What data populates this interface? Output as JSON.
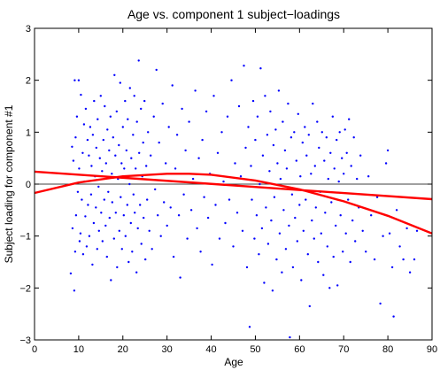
{
  "chart_data": {
    "type": "scatter",
    "title": "Age vs. component 1 subject−loadings",
    "xlabel": "Age",
    "ylabel": "Subject loading for component #1",
    "xlim": [
      0,
      90
    ],
    "ylim": [
      -3,
      3
    ],
    "xticks": [
      "0",
      "10",
      "20",
      "30",
      "40",
      "50",
      "60",
      "70",
      "80",
      "90"
    ],
    "yticks": [
      "3",
      "2",
      "1",
      "0",
      "−1",
      "−2",
      "−3"
    ],
    "xtick_values": [
      0,
      10,
      20,
      30,
      40,
      50,
      60,
      70,
      80,
      90
    ],
    "ytick_values": [
      3,
      2,
      1,
      0,
      -1,
      -2,
      -3
    ],
    "grid": false,
    "reference_line": {
      "y": 0,
      "color": "#000000"
    },
    "colors": {
      "points": "#0000ff",
      "fits": "#ff0000",
      "axes": "#000000",
      "background": "#ffffff"
    },
    "series": [
      {
        "kind": "points",
        "points": [
          [
            8.2,
            -1.72
          ],
          [
            8.5,
            0.72
          ],
          [
            8.6,
            -0.85
          ],
          [
            8.8,
            0.45
          ],
          [
            9.0,
            -2.05
          ],
          [
            9.1,
            2.0
          ],
          [
            9.2,
            -1.3
          ],
          [
            9.3,
            0.9
          ],
          [
            9.4,
            -0.6
          ],
          [
            9.6,
            1.3
          ],
          [
            9.8,
            -0.15
          ],
          [
            10.0,
            2.0
          ],
          [
            10.1,
            0.3
          ],
          [
            10.2,
            -1.1
          ],
          [
            10.4,
            -0.95
          ],
          [
            10.5,
            1.72
          ],
          [
            10.7,
            -0.3
          ],
          [
            10.9,
            0.6
          ],
          [
            11.0,
            -1.35
          ],
          [
            11.2,
            1.15
          ],
          [
            11.3,
            0.05
          ],
          [
            11.5,
            -0.62
          ],
          [
            11.6,
            1.45
          ],
          [
            11.8,
            -1.2
          ],
          [
            12.0,
            0.85
          ],
          [
            12.1,
            -0.4
          ],
          [
            12.3,
            0.55
          ],
          [
            12.4,
            -1.0
          ],
          [
            12.6,
            1.1
          ],
          [
            12.8,
            -0.2
          ],
          [
            12.9,
            0.35
          ],
          [
            13.1,
            -1.55
          ],
          [
            13.2,
            0.95
          ],
          [
            13.4,
            -0.75
          ],
          [
            13.5,
            1.6
          ],
          [
            13.7,
            0.15
          ],
          [
            13.9,
            -0.45
          ],
          [
            14.0,
            0.7
          ],
          [
            14.2,
            -1.25
          ],
          [
            14.3,
            1.25
          ],
          [
            14.5,
            -0.05
          ],
          [
            14.6,
            -0.9
          ],
          [
            14.8,
            0.5
          ],
          [
            15.0,
            1.7
          ],
          [
            15.1,
            -0.55
          ],
          [
            15.3,
            0.25
          ],
          [
            15.4,
            -1.1
          ],
          [
            15.6,
            0.85
          ],
          [
            15.8,
            -0.3
          ],
          [
            15.9,
            1.5
          ],
          [
            16.1,
            -0.8
          ],
          [
            16.2,
            0.4
          ],
          [
            16.4,
            -1.4
          ],
          [
            16.5,
            1.05
          ],
          [
            16.7,
            -0.15
          ],
          [
            16.9,
            0.65
          ],
          [
            17.0,
            -0.65
          ],
          [
            17.2,
            1.3
          ],
          [
            17.3,
            -1.85
          ],
          [
            17.5,
            0.2
          ],
          [
            17.6,
            -0.35
          ],
          [
            17.8,
            0.9
          ],
          [
            18.0,
            -1.05
          ],
          [
            18.1,
            2.1
          ],
          [
            18.3,
            0.55
          ],
          [
            18.4,
            -0.55
          ],
          [
            18.6,
            1.4
          ],
          [
            18.7,
            -1.6
          ],
          [
            18.9,
            0.1
          ],
          [
            19.1,
            0.75
          ],
          [
            19.2,
            -0.9
          ],
          [
            19.4,
            1.95
          ],
          [
            19.5,
            -0.25
          ],
          [
            19.7,
            0.4
          ],
          [
            19.8,
            -1.25
          ],
          [
            20.0,
            1.1
          ],
          [
            20.2,
            -0.6
          ],
          [
            20.3,
            0.3
          ],
          [
            20.5,
            1.6
          ],
          [
            20.6,
            -1.0
          ],
          [
            20.8,
            0.65
          ],
          [
            21.0,
            -0.4
          ],
          [
            21.1,
            1.25
          ],
          [
            21.3,
            -1.5
          ],
          [
            21.5,
            0.0
          ],
          [
            21.6,
            1.85
          ],
          [
            21.8,
            -0.75
          ],
          [
            21.9,
            0.5
          ],
          [
            22.1,
            -1.3
          ],
          [
            22.3,
            0.95
          ],
          [
            22.4,
            -0.2
          ],
          [
            22.6,
            1.7
          ],
          [
            22.7,
            -0.55
          ],
          [
            22.9,
            0.3
          ],
          [
            23.1,
            -1.7
          ],
          [
            23.2,
            1.2
          ],
          [
            23.4,
            -0.85
          ],
          [
            23.6,
            2.38
          ],
          [
            23.7,
            0.6
          ],
          [
            23.9,
            -0.4
          ],
          [
            24.1,
            1.45
          ],
          [
            24.2,
            -1.15
          ],
          [
            24.4,
            0.15
          ],
          [
            24.6,
            0.8
          ],
          [
            24.7,
            -0.65
          ],
          [
            24.9,
            1.6
          ],
          [
            25.1,
            -1.45
          ],
          [
            25.3,
            0.35
          ],
          [
            25.5,
            -0.3
          ],
          [
            25.7,
            1.0
          ],
          [
            26.0,
            -0.9
          ],
          [
            26.3,
            0.55
          ],
          [
            26.6,
            -1.25
          ],
          [
            27.0,
            1.3
          ],
          [
            27.3,
            -0.1
          ],
          [
            27.6,
            2.2
          ],
          [
            27.9,
            -0.6
          ],
          [
            28.2,
            0.8
          ],
          [
            28.6,
            -1.0
          ],
          [
            29.0,
            1.55
          ],
          [
            29.3,
            -0.35
          ],
          [
            29.7,
            0.4
          ],
          [
            30.0,
            -0.8
          ],
          [
            30.4,
            1.1
          ],
          [
            30.8,
            -0.45
          ],
          [
            31.2,
            1.9
          ],
          [
            31.5,
            -1.4
          ],
          [
            31.9,
            0.3
          ],
          [
            32.3,
            0.95
          ],
          [
            32.7,
            -0.6
          ],
          [
            33.0,
            -1.8
          ],
          [
            33.4,
            1.45
          ],
          [
            33.8,
            -0.2
          ],
          [
            34.2,
            0.65
          ],
          [
            34.6,
            -1.05
          ],
          [
            35.0,
            1.2
          ],
          [
            35.5,
            -0.5
          ],
          [
            35.9,
            0.1
          ],
          [
            36.4,
            1.8
          ],
          [
            36.8,
            -0.85
          ],
          [
            37.2,
            0.5
          ],
          [
            37.6,
            -1.3
          ],
          [
            38.0,
            0.85
          ],
          [
            38.4,
            -0.25
          ],
          [
            38.9,
            1.4
          ],
          [
            39.3,
            -0.65
          ],
          [
            39.7,
            0.2
          ],
          [
            40.2,
            -1.55
          ],
          [
            40.6,
            1.7
          ],
          [
            41.0,
            -0.4
          ],
          [
            41.5,
            0.6
          ],
          [
            41.9,
            -1.05
          ],
          [
            42.4,
            1.0
          ],
          [
            42.8,
            0.05
          ],
          [
            43.2,
            -0.75
          ],
          [
            43.7,
            1.3
          ],
          [
            44.1,
            -0.3
          ],
          [
            44.6,
            2.0
          ],
          [
            45.0,
            -1.2
          ],
          [
            45.4,
            0.4
          ],
          [
            45.9,
            -0.55
          ],
          [
            46.3,
            1.5
          ],
          [
            46.7,
            0.15
          ],
          [
            47.1,
            -0.9
          ],
          [
            47.4,
            2.28
          ],
          [
            47.8,
            0.7
          ],
          [
            48.1,
            -1.6
          ],
          [
            48.4,
            1.1
          ],
          [
            48.7,
            -2.75
          ],
          [
            49.0,
            0.35
          ],
          [
            49.2,
            -0.3
          ],
          [
            49.5,
            1.6
          ],
          [
            49.8,
            -1.05
          ],
          [
            50.0,
            0.85
          ],
          [
            50.3,
            -0.6
          ],
          [
            50.5,
            1.3
          ],
          [
            50.8,
            -1.35
          ],
          [
            51.0,
            0.0
          ],
          [
            51.2,
            2.23
          ],
          [
            51.5,
            -0.85
          ],
          [
            51.7,
            0.55
          ],
          [
            52.0,
            -1.9
          ],
          [
            52.2,
            1.7
          ],
          [
            52.4,
            -0.45
          ],
          [
            52.7,
            0.95
          ],
          [
            52.9,
            -1.15
          ],
          [
            53.2,
            0.25
          ],
          [
            53.4,
            1.4
          ],
          [
            53.6,
            -0.7
          ],
          [
            53.9,
            -2.05
          ],
          [
            54.1,
            0.75
          ],
          [
            54.3,
            -0.25
          ],
          [
            54.6,
            1.05
          ],
          [
            54.8,
            -1.45
          ],
          [
            55.0,
            0.4
          ],
          [
            55.3,
            1.8
          ],
          [
            55.5,
            -0.95
          ],
          [
            55.7,
            0.1
          ],
          [
            56.0,
            -1.7
          ],
          [
            56.2,
            1.2
          ],
          [
            56.4,
            -0.5
          ],
          [
            56.7,
            0.65
          ],
          [
            56.9,
            -1.25
          ],
          [
            57.1,
            0.3
          ],
          [
            57.4,
            1.55
          ],
          [
            57.6,
            -0.8
          ],
          [
            57.8,
            -2.95
          ],
          [
            58.1,
            0.9
          ],
          [
            58.3,
            -0.2
          ],
          [
            58.5,
            -1.6
          ],
          [
            58.8,
            1.0
          ],
          [
            59.0,
            -0.65
          ],
          [
            59.3,
            0.45
          ],
          [
            59.5,
            -1.1
          ],
          [
            59.7,
            1.35
          ],
          [
            60.0,
            -0.4
          ],
          [
            60.2,
            0.15
          ],
          [
            60.4,
            -1.85
          ],
          [
            60.7,
            0.8
          ],
          [
            60.9,
            -0.9
          ],
          [
            61.2,
            1.1
          ],
          [
            61.4,
            -0.3
          ],
          [
            61.6,
            0.55
          ],
          [
            61.9,
            -1.35
          ],
          [
            62.1,
            0.95
          ],
          [
            62.3,
            -2.35
          ],
          [
            62.6,
            0.2
          ],
          [
            62.8,
            -0.7
          ],
          [
            63.0,
            1.55
          ],
          [
            63.3,
            -1.05
          ],
          [
            63.5,
            0.35
          ],
          [
            63.7,
            -0.45
          ],
          [
            64.0,
            1.2
          ],
          [
            64.2,
            -1.5
          ],
          [
            64.4,
            0.7
          ],
          [
            64.7,
            -0.15
          ],
          [
            64.9,
            -0.95
          ],
          [
            65.1,
            1.0
          ],
          [
            65.4,
            -1.75
          ],
          [
            65.6,
            0.45
          ],
          [
            65.8,
            -0.55
          ],
          [
            66.1,
            0.9
          ],
          [
            66.3,
            -1.2
          ],
          [
            66.5,
            0.1
          ],
          [
            66.8,
            -2.0
          ],
          [
            67.0,
            0.6
          ],
          [
            67.2,
            -0.35
          ],
          [
            67.5,
            1.3
          ],
          [
            67.7,
            -1.4
          ],
          [
            67.9,
            0.3
          ],
          [
            68.2,
            -0.8
          ],
          [
            68.4,
            0.85
          ],
          [
            68.6,
            -1.95
          ],
          [
            68.9,
            0.05
          ],
          [
            69.1,
            1.0
          ],
          [
            69.3,
            -0.6
          ],
          [
            69.6,
            0.5
          ],
          [
            69.8,
            -1.3
          ],
          [
            70.0,
            0.2
          ],
          [
            70.3,
            1.05
          ],
          [
            70.5,
            -0.95
          ],
          [
            70.7,
            0.6
          ],
          [
            71.0,
            -0.3
          ],
          [
            71.2,
            1.25
          ],
          [
            71.5,
            -1.5
          ],
          [
            71.7,
            0.35
          ],
          [
            72.0,
            -0.7
          ],
          [
            72.3,
            0.9
          ],
          [
            72.6,
            -1.1
          ],
          [
            73.0,
            0.1
          ],
          [
            73.4,
            -0.45
          ],
          [
            73.8,
            0.55
          ],
          [
            74.3,
            -0.9
          ],
          [
            75.0,
            -1.3
          ],
          [
            75.6,
            0.15
          ],
          [
            76.2,
            -0.6
          ],
          [
            77.0,
            -1.45
          ],
          [
            77.6,
            -0.25
          ],
          [
            78.3,
            -2.3
          ],
          [
            78.9,
            -1.0
          ],
          [
            79.6,
            0.4
          ],
          [
            80.0,
            0.65
          ],
          [
            80.4,
            -0.95
          ],
          [
            81.0,
            -1.6
          ],
          [
            81.3,
            -2.55
          ],
          [
            82.0,
            -0.5
          ],
          [
            82.7,
            -1.2
          ],
          [
            83.5,
            -1.45
          ],
          [
            84.3,
            -0.85
          ],
          [
            85.0,
            -1.7
          ],
          [
            86.0,
            -1.45
          ],
          [
            86.6,
            -0.9
          ]
        ]
      },
      {
        "kind": "fit-linear",
        "x": [
          0,
          90
        ],
        "y": [
          0.24,
          -0.29
        ]
      },
      {
        "kind": "fit-quadratic",
        "x": [
          0,
          10,
          20,
          30,
          35,
          40,
          50,
          60,
          70,
          80,
          90
        ],
        "y": [
          -0.17,
          0.03,
          0.15,
          0.2,
          0.2,
          0.18,
          0.07,
          -0.1,
          -0.33,
          -0.61,
          -0.95
        ]
      }
    ]
  }
}
